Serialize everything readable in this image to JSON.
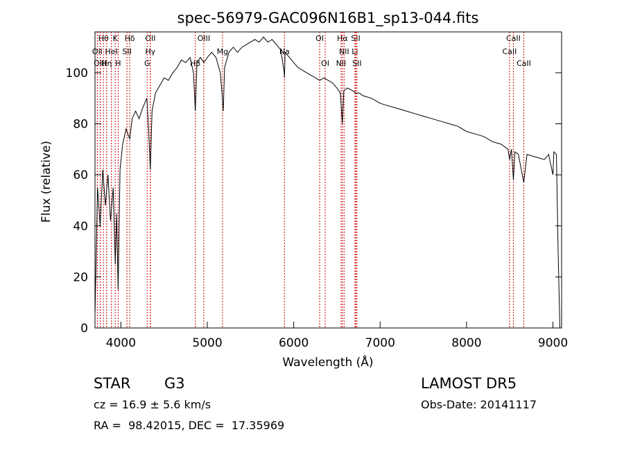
{
  "chart_data": {
    "type": "line",
    "title": "spec-56979-GAC096N16B1_sp13-044.fits",
    "xlabel": "Wavelength (Å)",
    "ylabel": "Flux (relative)",
    "xlim": [
      3700,
      9100
    ],
    "ylim": [
      0,
      116
    ],
    "x_ticks": [
      4000,
      5000,
      6000,
      7000,
      8000,
      9000
    ],
    "y_ticks": [
      0,
      20,
      40,
      60,
      80,
      100
    ],
    "series": [
      {
        "x": [
          3700,
          3730,
          3760,
          3790,
          3820,
          3850,
          3880,
          3910,
          3935,
          3950,
          3968,
          3990,
          4020,
          4060,
          4102,
          4130,
          4170,
          4210,
          4250,
          4300,
          4320,
          4340,
          4360,
          4400,
          4450,
          4500,
          4550,
          4600,
          4650,
          4700,
          4750,
          4800,
          4840,
          4861,
          4880,
          4920,
          4960,
          5000,
          5050,
          5100,
          5150,
          5170,
          5184,
          5200,
          5250,
          5300,
          5350,
          5400,
          5450,
          5500,
          5550,
          5600,
          5650,
          5700,
          5750,
          5800,
          5850,
          5890,
          5893,
          5900,
          5950,
          6000,
          6050,
          6100,
          6150,
          6200,
          6250,
          6300,
          6350,
          6400,
          6450,
          6500,
          6540,
          6563,
          6580,
          6620,
          6680,
          6720,
          6760,
          6800,
          6900,
          7000,
          7100,
          7200,
          7300,
          7400,
          7500,
          7600,
          7700,
          7800,
          7900,
          8000,
          8100,
          8200,
          8300,
          8400,
          8480,
          8498,
          8520,
          8542,
          8560,
          8600,
          8662,
          8700,
          8800,
          8900,
          8950,
          9000,
          9010,
          9040,
          9060,
          9080
        ],
        "y": [
          5,
          55,
          40,
          62,
          48,
          60,
          42,
          55,
          25,
          45,
          15,
          62,
          72,
          78,
          74,
          82,
          85,
          82,
          86,
          90,
          78,
          62,
          85,
          92,
          95,
          98,
          97,
          100,
          102,
          105,
          104,
          106,
          100,
          85,
          104,
          106,
          104,
          106,
          108,
          106,
          100,
          92,
          85,
          102,
          108,
          110,
          108,
          110,
          111,
          112,
          113,
          112,
          114,
          112,
          113,
          111,
          109,
          100,
          98,
          108,
          106,
          104,
          102,
          101,
          100,
          99,
          98,
          97,
          98,
          97,
          96,
          94,
          92,
          80,
          93,
          94,
          93,
          92,
          92,
          91,
          90,
          88,
          87,
          86,
          85,
          84,
          83,
          82,
          81,
          80,
          79,
          77,
          76,
          75,
          73,
          72,
          70,
          66,
          70,
          58,
          69,
          68,
          57,
          68,
          67,
          66,
          68,
          60,
          69,
          68,
          30,
          0
        ]
      }
    ],
    "line_annotations": [
      {
        "label": "Hθ",
        "x": 3798,
        "row": 0
      },
      {
        "label": "K",
        "x": 3934,
        "row": 0
      },
      {
        "label": "Hδ",
        "x": 4102,
        "row": 0
      },
      {
        "label": "OII",
        "x": 4341,
        "row": 0
      },
      {
        "label": "OIII",
        "x": 4959,
        "row": 0
      },
      {
        "label": "OI",
        "x": 6300,
        "row": 0
      },
      {
        "label": "Hα",
        "x": 6563,
        "row": 0
      },
      {
        "label": "SII",
        "x": 6717,
        "row": 0
      },
      {
        "label": "CaII",
        "x": 8542,
        "row": 0
      },
      {
        "label": "OII",
        "x": 3727,
        "row": 1
      },
      {
        "label": "HeI",
        "x": 3889,
        "row": 1
      },
      {
        "label": "SII",
        "x": 4070,
        "row": 1
      },
      {
        "label": "Hγ",
        "x": 4340,
        "row": 1
      },
      {
        "label": "Mg",
        "x": 5175,
        "row": 1
      },
      {
        "label": "Na",
        "x": 5893,
        "row": 1
      },
      {
        "label": "NII",
        "x": 6583,
        "row": 1
      },
      {
        "label": "Li",
        "x": 6708,
        "row": 1
      },
      {
        "label": "CaII",
        "x": 8498,
        "row": 1
      },
      {
        "label": "OIII",
        "x": 3760,
        "row": 2
      },
      {
        "label": "Hη",
        "x": 3835,
        "row": 2
      },
      {
        "label": "H",
        "x": 3968,
        "row": 2
      },
      {
        "label": "G",
        "x": 4304,
        "row": 2
      },
      {
        "label": "Hβ",
        "x": 4861,
        "row": 2
      },
      {
        "label": "OI",
        "x": 6364,
        "row": 2
      },
      {
        "label": "NII",
        "x": 6548,
        "row": 2
      },
      {
        "label": "SII",
        "x": 6731,
        "row": 2
      },
      {
        "label": "CaII",
        "x": 8662,
        "row": 2
      }
    ]
  },
  "info": {
    "object_type": "STAR",
    "subclass": "G3",
    "survey": "LAMOST DR5",
    "redshift": "cz = 16.9 ± 5.6 km/s",
    "obs_date": "Obs-Date: 20141117",
    "coords": "RA =  98.42015, DEC =  17.35969"
  },
  "colors": {
    "line": "#000000",
    "annotation": "#cc0000",
    "background": "#ffffff"
  }
}
